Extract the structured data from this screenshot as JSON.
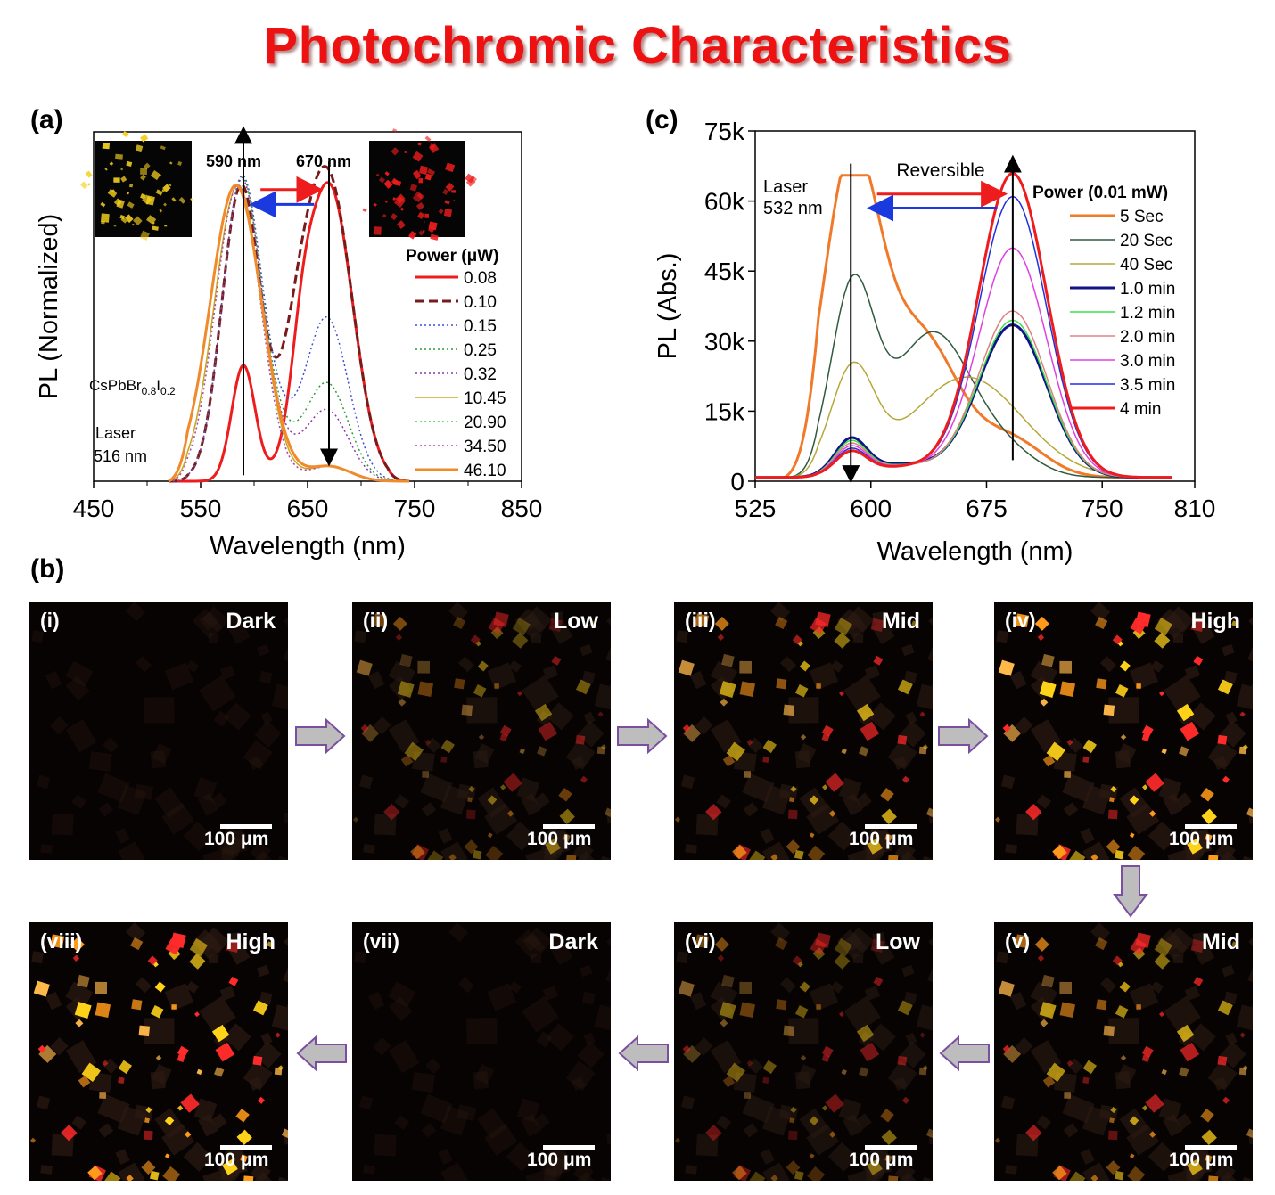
{
  "title": "Photochromic Characteristics",
  "panels": {
    "a": "(a)",
    "b": "(b)",
    "c": "(c)"
  },
  "chart_data": [
    {
      "id": "a",
      "type": "line",
      "xlabel": "Wavelength (nm)",
      "ylabel": "PL (Normalized)",
      "xlim": [
        450,
        850
      ],
      "xticks": [
        450,
        550,
        650,
        750,
        850
      ],
      "ylim": [
        0,
        1.18
      ],
      "legend_title": "Power (μW)",
      "legend_placement": "right",
      "annotations": {
        "peak1": "590 nm",
        "peak2": "670 nm",
        "material_prefix": "CsPbBr",
        "material_sub1": "0.8",
        "material_mid": "I",
        "material_sub2": "0.2",
        "laser_line1": "Laser",
        "laser_line2": "516 nm"
      },
      "series": [
        {
          "name": "0.08",
          "color": "#ee1c1c",
          "style": "solid",
          "width": 3,
          "peaks": [
            [
              590,
              0.39,
              11
            ],
            [
              670,
              1.0,
              22
            ],
            [
              645,
              0.18,
              10
            ]
          ]
        },
        {
          "name": "0.10",
          "color": "#7a1a1a",
          "style": "dash",
          "width": 3,
          "peaks": [
            [
              588,
              1.0,
              18
            ],
            [
              670,
              1.0,
              22
            ],
            [
              640,
              0.3,
              16
            ]
          ]
        },
        {
          "name": "0.15",
          "color": "#3d4fd0",
          "style": "dot",
          "width": 1.5,
          "peaks": [
            [
              588,
              1.0,
              18
            ],
            [
              668,
              0.55,
              20
            ],
            [
              620,
              0.15,
              18
            ]
          ]
        },
        {
          "name": "0.25",
          "color": "#2a9a3a",
          "style": "dot",
          "width": 1.5,
          "peaks": [
            [
              588,
              1.0,
              18
            ],
            [
              668,
              0.33,
              20
            ],
            [
              620,
              0.12,
              18
            ]
          ]
        },
        {
          "name": "0.32",
          "color": "#8a3aa8",
          "style": "dot",
          "width": 1.5,
          "peaks": [
            [
              588,
              1.0,
              18
            ],
            [
              668,
              0.24,
              20
            ],
            [
              620,
              0.1,
              18
            ]
          ]
        },
        {
          "name": "10.45",
          "color": "#c8a61a",
          "style": "solid",
          "width": 1.5,
          "peaks": [
            [
              585,
              1.0,
              22
            ],
            [
              670,
              0.05,
              20
            ]
          ]
        },
        {
          "name": "20.90",
          "color": "#3ad04a",
          "style": "dot",
          "width": 1.5,
          "peaks": [
            [
              585,
              1.0,
              21
            ],
            [
              670,
              0.05,
              20
            ]
          ]
        },
        {
          "name": "34.50",
          "color": "#c040c0",
          "style": "dot",
          "width": 1.5,
          "peaks": [
            [
              585,
              1.0,
              21
            ],
            [
              670,
              0.05,
              20
            ]
          ]
        },
        {
          "name": "46.10",
          "color": "#f08a2a",
          "style": "solid",
          "width": 3,
          "peaks": [
            [
              583,
              1.0,
              24
            ],
            [
              670,
              0.05,
              20
            ]
          ]
        }
      ]
    },
    {
      "id": "c",
      "type": "line",
      "xlabel": "Wavelength (nm)",
      "ylabel": "PL (Abs.)",
      "xlim": [
        525,
        810
      ],
      "xticks": [
        525,
        600,
        675,
        750,
        810
      ],
      "ylim": [
        0,
        75000
      ],
      "yticks": [
        0,
        15000,
        30000,
        45000,
        60000,
        75000
      ],
      "ytick_labels": [
        "0",
        "15k",
        "30k",
        "45k",
        "60k",
        "75k"
      ],
      "legend_title": "Power (0.01 mW)",
      "legend_placement": "right",
      "annotations": {
        "reversible": "Reversible",
        "laser_line1": "Laser",
        "laser_line2": "532 nm"
      },
      "series": [
        {
          "name": "5 Sec",
          "color": "#f07a2a",
          "width": 3,
          "peaks": [
            [
              587,
              66000,
              18
            ],
            [
              632,
              30000,
              24
            ],
            [
              690,
              8000,
              22
            ]
          ],
          "cap": 65500
        },
        {
          "name": "20 Sec",
          "color": "#2f5a3f",
          "width": 1.5,
          "peaks": [
            [
              588,
              39000,
              14
            ],
            [
              640,
              31000,
              26
            ],
            [
              690,
              4000,
              20
            ]
          ]
        },
        {
          "name": "40 Sec",
          "color": "#b5a83a",
          "width": 1.5,
          "peaks": [
            [
              588,
              22000,
              14
            ],
            [
              662,
              21500,
              36
            ]
          ]
        },
        {
          "name": "1.0 min",
          "color": "#12128a",
          "width": 3,
          "peaks": [
            [
              587,
              7000,
              10
            ],
            [
              692,
              32500,
              22
            ],
            [
              620,
              2800,
              30
            ]
          ]
        },
        {
          "name": "1.2 min",
          "color": "#3ae04a",
          "width": 1.5,
          "peaks": [
            [
              587,
              6500,
              10
            ],
            [
              692,
              33500,
              22
            ],
            [
              620,
              2600,
              30
            ]
          ]
        },
        {
          "name": "2.0 min",
          "color": "#e08080",
          "width": 1.5,
          "peaks": [
            [
              587,
              6000,
              10
            ],
            [
              692,
              35500,
              22
            ],
            [
              620,
              2500,
              30
            ]
          ]
        },
        {
          "name": "3.0 min",
          "color": "#e040e0",
          "width": 1.5,
          "peaks": [
            [
              587,
              5500,
              10
            ],
            [
              692,
              49000,
              22
            ],
            [
              620,
              2400,
              30
            ]
          ]
        },
        {
          "name": "3.5 min",
          "color": "#2030e0",
          "width": 1.5,
          "peaks": [
            [
              587,
              5000,
              10
            ],
            [
              692,
              60000,
              22
            ],
            [
              620,
              2300,
              30
            ]
          ]
        },
        {
          "name": "4 min",
          "color": "#ee1c1c",
          "width": 3,
          "peaks": [
            [
              587,
              4500,
              10
            ],
            [
              692,
              65000,
              22
            ],
            [
              620,
              2200,
              30
            ]
          ]
        }
      ]
    }
  ],
  "micrographs": [
    {
      "label": "(i)",
      "state": "Dark",
      "scale": "100 μm",
      "brightness": 0.0
    },
    {
      "label": "(ii)",
      "state": "Low",
      "scale": "100 μm",
      "brightness": 0.45
    },
    {
      "label": "(iii)",
      "state": "Mid",
      "scale": "100 μm",
      "brightness": 0.7
    },
    {
      "label": "(iv)",
      "state": "High",
      "scale": "100 μm",
      "brightness": 1.0
    },
    {
      "label": "(v)",
      "state": "Mid",
      "scale": "100 μm",
      "brightness": 0.7
    },
    {
      "label": "(vi)",
      "state": "Low",
      "scale": "100 μm",
      "brightness": 0.45
    },
    {
      "label": "(vii)",
      "state": "Dark",
      "scale": "100 μm",
      "brightness": 0.0
    },
    {
      "label": "(viii)",
      "state": "High",
      "scale": "100 μm",
      "brightness": 1.0
    }
  ],
  "colors": {
    "title": "#ee1111",
    "arrow_fill": "#bdbdbd",
    "arrow_stroke": "#7a4fa0",
    "red_arrow": "#ee1c1c",
    "blue_arrow": "#1a3ae0"
  }
}
